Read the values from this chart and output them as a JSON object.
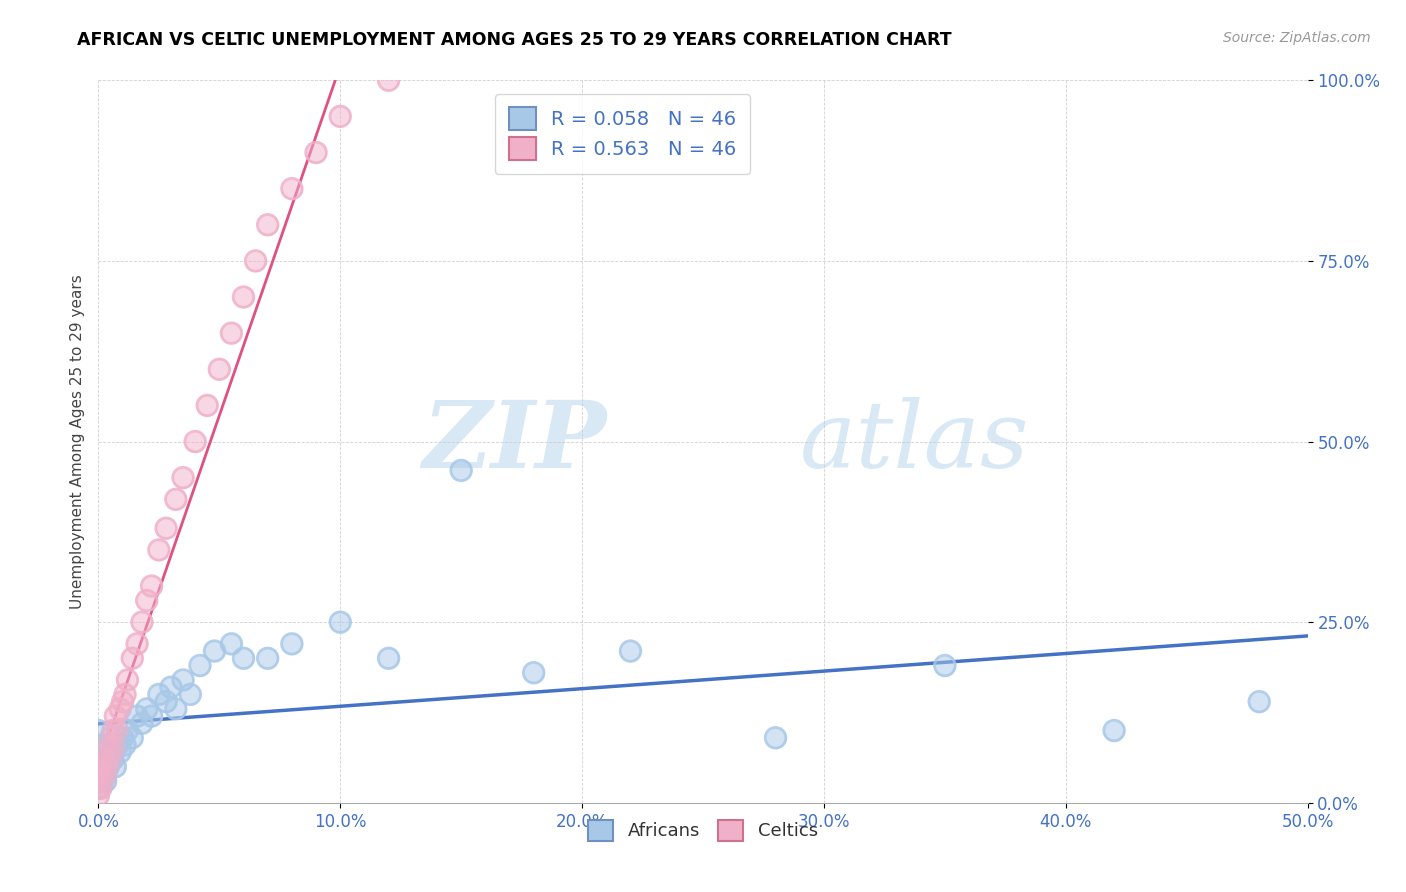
{
  "title": "AFRICAN VS CELTIC UNEMPLOYMENT AMONG AGES 25 TO 29 YEARS CORRELATION CHART",
  "source": "Source: ZipAtlas.com",
  "xlim": [
    0.0,
    0.5
  ],
  "ylim": [
    0.0,
    1.0
  ],
  "ylabel": "Unemployment Among Ages 25 to 29 years",
  "legend_africans": "Africans",
  "legend_celtics": "Celtics",
  "r_africans": 0.058,
  "n_africans": 46,
  "r_celtics": 0.563,
  "n_celtics": 46,
  "african_color": "#a8c8e8",
  "celtic_color": "#f0b0c8",
  "african_line_color": "#4472c4",
  "celtic_line_color": "#e05080",
  "watermark_zip": "ZIP",
  "watermark_atlas": "atlas",
  "africans_x": [
    0.0,
    0.0,
    0.0,
    0.0,
    0.0,
    0.001,
    0.001,
    0.002,
    0.002,
    0.003,
    0.003,
    0.004,
    0.005,
    0.006,
    0.007,
    0.008,
    0.009,
    0.01,
    0.011,
    0.012,
    0.014,
    0.016,
    0.018,
    0.02,
    0.022,
    0.025,
    0.028,
    0.03,
    0.032,
    0.035,
    0.038,
    0.042,
    0.048,
    0.055,
    0.06,
    0.07,
    0.08,
    0.1,
    0.12,
    0.15,
    0.18,
    0.22,
    0.28,
    0.35,
    0.42,
    0.48
  ],
  "africans_y": [
    0.02,
    0.04,
    0.06,
    0.08,
    0.1,
    0.03,
    0.05,
    0.04,
    0.07,
    0.03,
    0.06,
    0.05,
    0.07,
    0.06,
    0.05,
    0.08,
    0.07,
    0.09,
    0.08,
    0.1,
    0.09,
    0.12,
    0.11,
    0.13,
    0.12,
    0.15,
    0.14,
    0.16,
    0.13,
    0.17,
    0.15,
    0.19,
    0.21,
    0.22,
    0.2,
    0.2,
    0.22,
    0.25,
    0.2,
    0.46,
    0.18,
    0.21,
    0.09,
    0.19,
    0.1,
    0.14
  ],
  "celtics_x": [
    0.0,
    0.0,
    0.0,
    0.0,
    0.0,
    0.0,
    0.001,
    0.001,
    0.001,
    0.002,
    0.002,
    0.003,
    0.003,
    0.004,
    0.004,
    0.005,
    0.005,
    0.006,
    0.006,
    0.007,
    0.007,
    0.008,
    0.009,
    0.01,
    0.011,
    0.012,
    0.014,
    0.016,
    0.018,
    0.02,
    0.022,
    0.025,
    0.028,
    0.032,
    0.035,
    0.04,
    0.045,
    0.05,
    0.055,
    0.06,
    0.065,
    0.07,
    0.08,
    0.09,
    0.1,
    0.12
  ],
  "celtics_y": [
    0.01,
    0.02,
    0.03,
    0.04,
    0.05,
    0.07,
    0.02,
    0.04,
    0.06,
    0.03,
    0.05,
    0.04,
    0.06,
    0.05,
    0.08,
    0.06,
    0.09,
    0.07,
    0.1,
    0.08,
    0.12,
    0.1,
    0.13,
    0.14,
    0.15,
    0.17,
    0.2,
    0.22,
    0.25,
    0.28,
    0.3,
    0.35,
    0.38,
    0.42,
    0.45,
    0.5,
    0.55,
    0.6,
    0.65,
    0.7,
    0.75,
    0.8,
    0.85,
    0.9,
    0.95,
    1.0
  ]
}
